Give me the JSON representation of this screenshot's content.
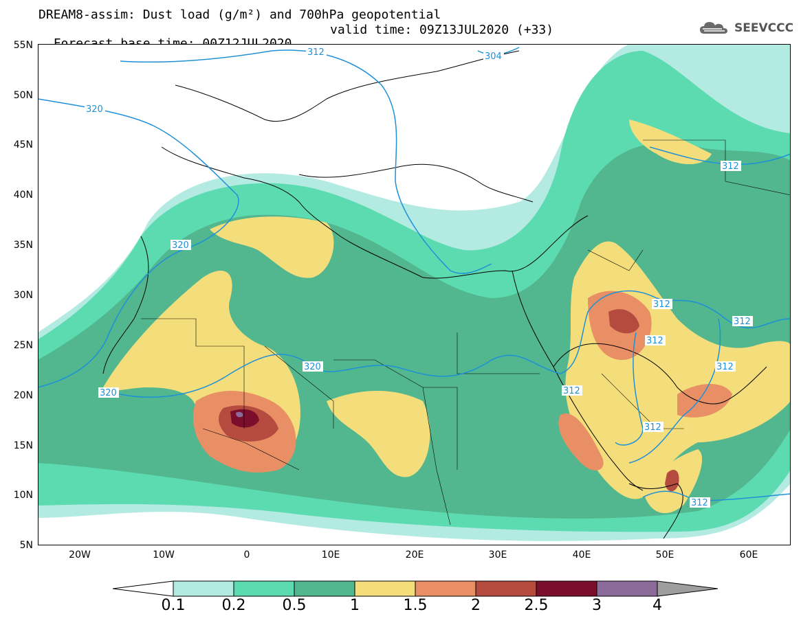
{
  "title": {
    "line1": "DREAM8-assim: Dust load (g/m²) and 700hPa geopotential",
    "line2_left": "Forecast base time: 00Z12JUL2020",
    "line2_right": "valid time: 09Z13JUL2020 (+33)"
  },
  "logo": {
    "text": "SEEVCCC",
    "icon": "cloud-icon"
  },
  "axes": {
    "lat_labels": [
      "55N",
      "50N",
      "45N",
      "40N",
      "35N",
      "30N",
      "25N",
      "20N",
      "15N",
      "10N",
      "5N"
    ],
    "lon_labels": [
      "20W",
      "10W",
      "0",
      "10E",
      "20E",
      "30E",
      "40E",
      "50E",
      "60E"
    ]
  },
  "contour_labels": {
    "c320a": "320",
    "c320b": "320",
    "c320c": "320",
    "c320d": "320",
    "c312a": "312",
    "c304": "304",
    "c312b": "312",
    "c312c": "312",
    "c312d": "312",
    "c312e": "312",
    "c312f": "312",
    "c312g": "312",
    "c312h": "312",
    "c312i": "312"
  },
  "colorbar": {
    "labels": [
      "0.1",
      "0.2",
      "0.5",
      "1",
      "1.5",
      "2",
      "2.5",
      "3",
      "4"
    ],
    "colors": [
      "#b3ebe2",
      "#5ddbb0",
      "#52b68e",
      "#f4de7c",
      "#e98f65",
      "#b54b3e",
      "#7a0e2b",
      "#8c6b9a"
    ],
    "low_color": "#ffffff",
    "high_color": "#9e9e9e"
  }
}
